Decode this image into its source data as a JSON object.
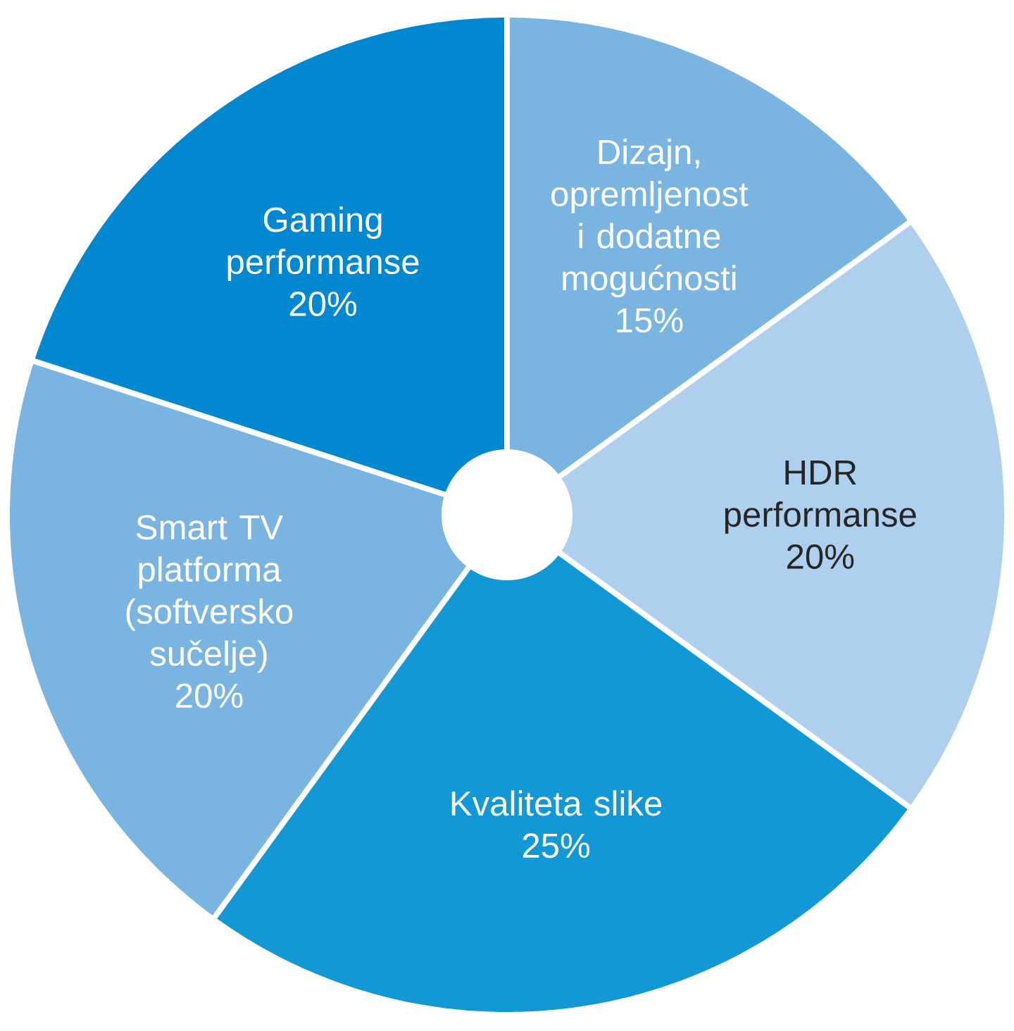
{
  "chart_data": {
    "type": "donut",
    "categories": [
      "Dizajn, opremljenost i dodatne mogućnosti",
      "HDR performanse",
      "Kvaliteta slike",
      "Smart TV platforma (softversko sučelje)",
      "Gaming performanse"
    ],
    "values": [
      15,
      20,
      25,
      20,
      20
    ],
    "value_labels": [
      "15%",
      "20%",
      "25%",
      "20%",
      "20%"
    ],
    "colors": [
      "#7ab4e0",
      "#aed0ee",
      "#1398d6",
      "#7ab4e0",
      "#0288d1"
    ]
  }
}
